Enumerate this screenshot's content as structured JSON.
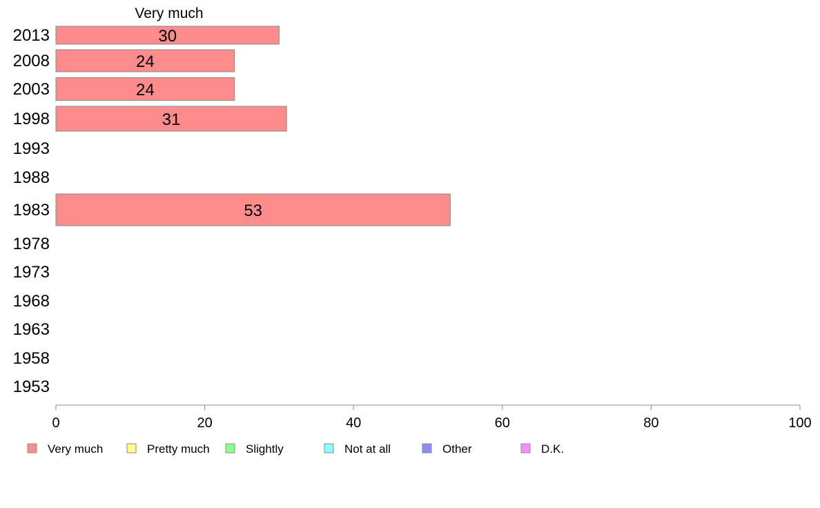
{
  "chart_data": {
    "type": "bar",
    "orientation": "horizontal",
    "stacked": true,
    "categories": [
      "2013",
      "2008",
      "2003",
      "1998",
      "1993",
      "1988",
      "1983",
      "1978",
      "1973",
      "1968",
      "1963",
      "1958",
      "1953"
    ],
    "series": [
      {
        "name": "Very much",
        "color": "#ff8c8c",
        "values": [
          30,
          24,
          24,
          31,
          null,
          null,
          53,
          null,
          null,
          null,
          null,
          null,
          null
        ]
      },
      {
        "name": "Pretty much",
        "color": "#ffff8c",
        "values": [
          null,
          null,
          null,
          null,
          null,
          null,
          null,
          null,
          null,
          null,
          null,
          null,
          null
        ]
      },
      {
        "name": "Slightly",
        "color": "#8cff8c",
        "values": [
          null,
          null,
          null,
          null,
          null,
          null,
          null,
          null,
          null,
          null,
          null,
          null,
          null
        ]
      },
      {
        "name": "Not at all",
        "color": "#8cffff",
        "values": [
          null,
          null,
          null,
          null,
          null,
          null,
          null,
          null,
          null,
          null,
          null,
          null,
          null
        ]
      },
      {
        "name": "Other",
        "color": "#8c8cff",
        "values": [
          null,
          null,
          null,
          null,
          null,
          null,
          null,
          null,
          null,
          null,
          null,
          null,
          null
        ]
      },
      {
        "name": "D.K.",
        "color": "#ff8cff",
        "values": [
          null,
          null,
          null,
          null,
          null,
          null,
          null,
          null,
          null,
          null,
          null,
          null,
          null
        ]
      }
    ],
    "header_series_label": "Very much",
    "xlim": [
      0,
      100
    ],
    "xticks": [
      0,
      20,
      40,
      60,
      80,
      100
    ],
    "title": "",
    "xlabel": "",
    "ylabel": "",
    "grid": false,
    "legend_position": "bottom"
  }
}
